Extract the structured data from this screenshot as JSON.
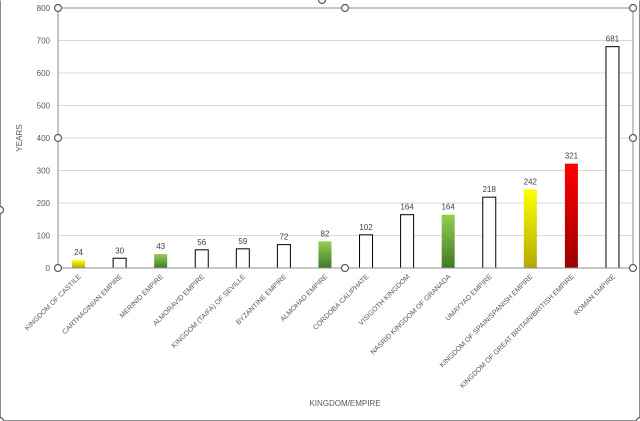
{
  "chart_data": {
    "type": "bar",
    "categories": [
      "KINGDOM OF CASTILE",
      "CARTHAGINIAN EMPIRE",
      "MERINID EMPIRE",
      "ALMORAVID EMPIRE",
      "KINGDOM (TAIFA) OF SEVILLE",
      "BYZANTINE EMPIRE",
      "ALMOHAD EMPIRE",
      "CORDOBA CALIPHATE",
      "VISIGOTH KINGDOM",
      "NASRID KINGDOM OF GRANADA",
      "UMAYYAD EMPIRE",
      "KINGDOM OF SPAIN/SPANISH EMPIRE",
      "KINGDOM OF GREAT BRITAIN/BRITISH EMPIRE",
      "ROMAN EMPIRE"
    ],
    "values": [
      24,
      30,
      43,
      56,
      59,
      72,
      82,
      102,
      164,
      164,
      218,
      242,
      321,
      681
    ],
    "bar_styles": [
      "yellow",
      "white",
      "green",
      "white",
      "white",
      "white",
      "green",
      "white",
      "white",
      "green",
      "white",
      "yellow",
      "red",
      "white"
    ],
    "colors": {
      "yellow_top": "#ffff00",
      "yellow_bottom": "#b3a800",
      "green_top": "#92d050",
      "green_bottom": "#3f7a2a",
      "red_top": "#ff0000",
      "red_bottom": "#9a0000",
      "white": "#ffffff",
      "bar_border": "#000000"
    },
    "xlabel": "KINGDOM/EMPIRE",
    "ylabel": "YEARS",
    "ylim": [
      0,
      800
    ],
    "yticks": [
      0,
      100,
      200,
      300,
      400,
      500,
      600,
      700,
      800
    ],
    "grid": true,
    "legend": "none",
    "data_labels": true
  }
}
